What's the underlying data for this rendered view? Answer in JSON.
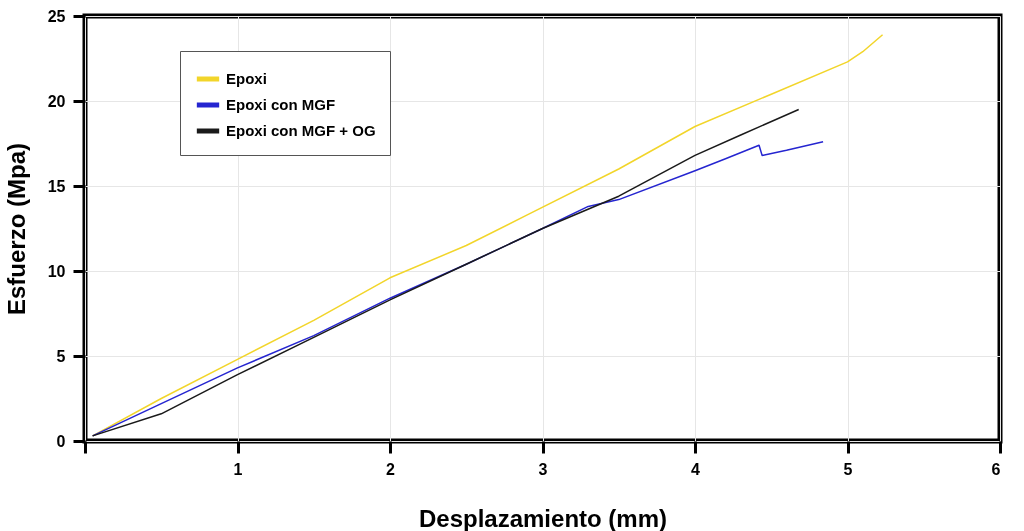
{
  "chart_data": {
    "type": "line",
    "xlabel": "Desplazamiento (mm)",
    "ylabel": "Esfuerzo (Mpa)",
    "xlim": [
      0,
      6
    ],
    "ylim": [
      0,
      25
    ],
    "xticks": [
      {
        "value": 0,
        "label": null
      },
      1,
      2,
      3,
      4,
      5,
      6
    ],
    "yticks": [
      0,
      5,
      10,
      15,
      20,
      25
    ],
    "grid": true,
    "legend": "top left",
    "marker": "none",
    "line_style": "solid",
    "series": [
      {
        "name": "Epoxi",
        "color": "#f2d52a",
        "x": [
          0.05,
          0.5,
          1,
          1.5,
          2,
          2.5,
          2.9,
          3.5,
          4,
          4.5,
          5,
          5.1,
          5.23
        ],
        "values": [
          0.3,
          2.5,
          4.8,
          7.1,
          9.6,
          11.5,
          13.3,
          16.0,
          18.5,
          20.4,
          22.3,
          22.9,
          23.9
        ]
      },
      {
        "name": "Epoxi con MGF",
        "color": "#2525d0",
        "x": [
          0.05,
          0.5,
          1,
          1.5,
          2,
          2.5,
          3,
          3.3,
          3.5,
          4,
          4.2,
          4.42,
          4.44,
          4.6,
          4.84
        ],
        "values": [
          0.3,
          2.2,
          4.3,
          6.2,
          8.4,
          10.4,
          12.5,
          13.8,
          14.2,
          15.9,
          16.6,
          17.4,
          16.8,
          17.1,
          17.6
        ]
      },
      {
        "name": "Epoxi con MGF + OG",
        "color": "#1a1a1a",
        "x": [
          0.05,
          0.5,
          1,
          1.5,
          2,
          2.5,
          3,
          3.5,
          4,
          4.3,
          4.68
        ],
        "values": [
          0.3,
          1.6,
          3.9,
          6.1,
          8.3,
          10.4,
          12.5,
          14.4,
          16.8,
          18.0,
          19.5
        ]
      }
    ]
  }
}
